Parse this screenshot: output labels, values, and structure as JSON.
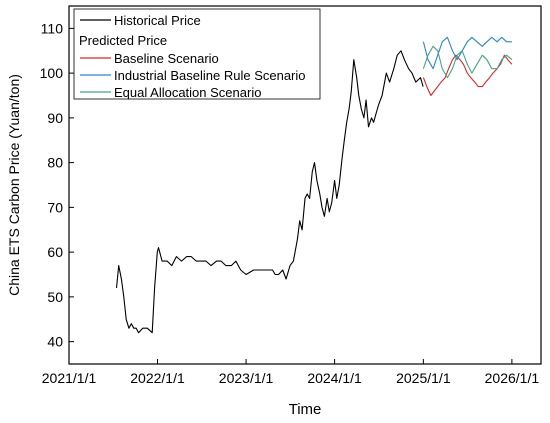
{
  "chart_data": {
    "type": "line",
    "xlabel": "Time",
    "ylabel": "China ETS Carbon Price (Yuan/ton)",
    "xlim": [
      "2021-01-01",
      "2026-05-01"
    ],
    "ylim": [
      35,
      115
    ],
    "x_ticks": [
      {
        "label": "2021/1/1",
        "date": "2021-01-01"
      },
      {
        "label": "2022/1/1",
        "date": "2022-01-01"
      },
      {
        "label": "2023/1/1",
        "date": "2023-01-01"
      },
      {
        "label": "2024/1/1",
        "date": "2024-01-01"
      },
      {
        "label": "2025/1/1",
        "date": "2025-01-01"
      },
      {
        "label": "2026/1/1",
        "date": "2026-01-01"
      }
    ],
    "y_ticks": [
      40,
      50,
      60,
      70,
      80,
      90,
      100,
      110
    ],
    "grid": false,
    "legend": {
      "placement": "top-left",
      "group_header": "Predicted Price"
    },
    "series": [
      {
        "name": "Historical Price",
        "color": "#000000",
        "x": [
          "2021-07-16",
          "2021-07-25",
          "2021-08-05",
          "2021-08-15",
          "2021-08-25",
          "2021-09-05",
          "2021-09-15",
          "2021-09-25",
          "2021-10-05",
          "2021-10-15",
          "2021-11-01",
          "2021-11-20",
          "2021-12-10",
          "2021-12-20",
          "2021-12-31",
          "2022-01-05",
          "2022-01-20",
          "2022-02-10",
          "2022-03-01",
          "2022-03-20",
          "2022-04-10",
          "2022-05-01",
          "2022-05-20",
          "2022-06-10",
          "2022-07-01",
          "2022-07-20",
          "2022-08-10",
          "2022-09-01",
          "2022-09-20",
          "2022-10-10",
          "2022-11-01",
          "2022-11-20",
          "2022-12-10",
          "2023-01-01",
          "2023-02-01",
          "2023-03-01",
          "2023-04-01",
          "2023-04-20",
          "2023-05-01",
          "2023-05-15",
          "2023-06-01",
          "2023-06-15",
          "2023-07-01",
          "2023-07-15",
          "2023-08-01",
          "2023-08-10",
          "2023-08-20",
          "2023-09-01",
          "2023-09-10",
          "2023-09-20",
          "2023-10-01",
          "2023-10-10",
          "2023-10-20",
          "2023-11-01",
          "2023-11-10",
          "2023-11-20",
          "2023-12-01",
          "2023-12-10",
          "2023-12-20",
          "2024-01-01",
          "2024-01-10",
          "2024-01-20",
          "2024-02-01",
          "2024-02-10",
          "2024-02-20",
          "2024-03-01",
          "2024-03-10",
          "2024-03-20",
          "2024-04-01",
          "2024-04-10",
          "2024-04-20",
          "2024-05-01",
          "2024-05-10",
          "2024-05-20",
          "2024-06-01",
          "2024-06-10",
          "2024-06-20",
          "2024-07-01",
          "2024-07-15",
          "2024-08-01",
          "2024-08-15",
          "2024-09-01",
          "2024-09-15",
          "2024-10-01",
          "2024-10-15",
          "2024-11-01",
          "2024-11-15",
          "2024-12-01",
          "2024-12-20",
          "2024-12-31"
        ],
        "y": [
          52,
          57,
          54,
          50,
          45,
          43,
          44,
          43,
          43,
          42,
          43,
          43,
          42,
          52,
          60,
          61,
          58,
          58,
          57,
          59,
          58,
          59,
          59,
          58,
          58,
          58,
          57,
          58,
          58,
          57,
          57,
          58,
          56,
          55,
          56,
          56,
          56,
          56,
          55,
          55,
          56,
          54,
          57,
          58,
          63,
          67,
          65,
          72,
          73,
          72,
          78,
          80,
          76,
          73,
          70,
          68,
          72,
          69,
          71,
          76,
          72,
          75,
          81,
          85,
          89,
          92,
          96,
          103,
          99,
          95,
          92,
          90,
          94,
          88,
          90,
          89,
          91,
          93,
          95,
          100,
          98,
          101,
          104,
          105,
          103,
          101,
          100,
          98,
          99,
          97
        ]
      },
      {
        "name": "Baseline Scenario",
        "color": "#d62728",
        "x": [
          "2025-01-01",
          "2025-01-15",
          "2025-02-01",
          "2025-02-15",
          "2025-03-01",
          "2025-03-15",
          "2025-04-01",
          "2025-04-15",
          "2025-05-01",
          "2025-05-15",
          "2025-06-01",
          "2025-06-15",
          "2025-07-01",
          "2025-07-15",
          "2025-08-01",
          "2025-08-15",
          "2025-09-01",
          "2025-09-15",
          "2025-10-01",
          "2025-10-15",
          "2025-11-01",
          "2025-11-15",
          "2025-12-01",
          "2025-12-15",
          "2026-01-01"
        ],
        "y": [
          99,
          97,
          95,
          96,
          97,
          98,
          99,
          101,
          103,
          104,
          103,
          102,
          100,
          99,
          98,
          97,
          97,
          98,
          99,
          100,
          101,
          102,
          104,
          103,
          102
        ]
      },
      {
        "name": "Industrial Baseline Rule Scenario",
        "color": "#2e86c1",
        "x": [
          "2025-01-01",
          "2025-01-20",
          "2025-02-10",
          "2025-03-01",
          "2025-03-20",
          "2025-04-10",
          "2025-05-01",
          "2025-05-20",
          "2025-06-10",
          "2025-07-01",
          "2025-07-20",
          "2025-08-10",
          "2025-09-01",
          "2025-09-20",
          "2025-10-10",
          "2025-11-01",
          "2025-11-20",
          "2025-12-10",
          "2026-01-01"
        ],
        "y": [
          107,
          103,
          101,
          104,
          107,
          108,
          105,
          103,
          105,
          107,
          108,
          107,
          106,
          107,
          108,
          107,
          108,
          107,
          107
        ]
      },
      {
        "name": "Equal Allocation Scenario",
        "color": "#45a58a",
        "x": [
          "2025-01-01",
          "2025-01-20",
          "2025-02-10",
          "2025-03-01",
          "2025-03-20",
          "2025-04-10",
          "2025-05-01",
          "2025-05-20",
          "2025-06-10",
          "2025-07-01",
          "2025-07-20",
          "2025-08-10",
          "2025-09-01",
          "2025-09-20",
          "2025-10-10",
          "2025-11-01",
          "2025-11-20",
          "2025-12-10",
          "2026-01-01"
        ],
        "y": [
          101,
          104,
          106,
          105,
          101,
          99,
          101,
          104,
          105,
          102,
          100,
          102,
          104,
          103,
          101,
          101,
          103,
          104,
          103
        ]
      }
    ]
  }
}
